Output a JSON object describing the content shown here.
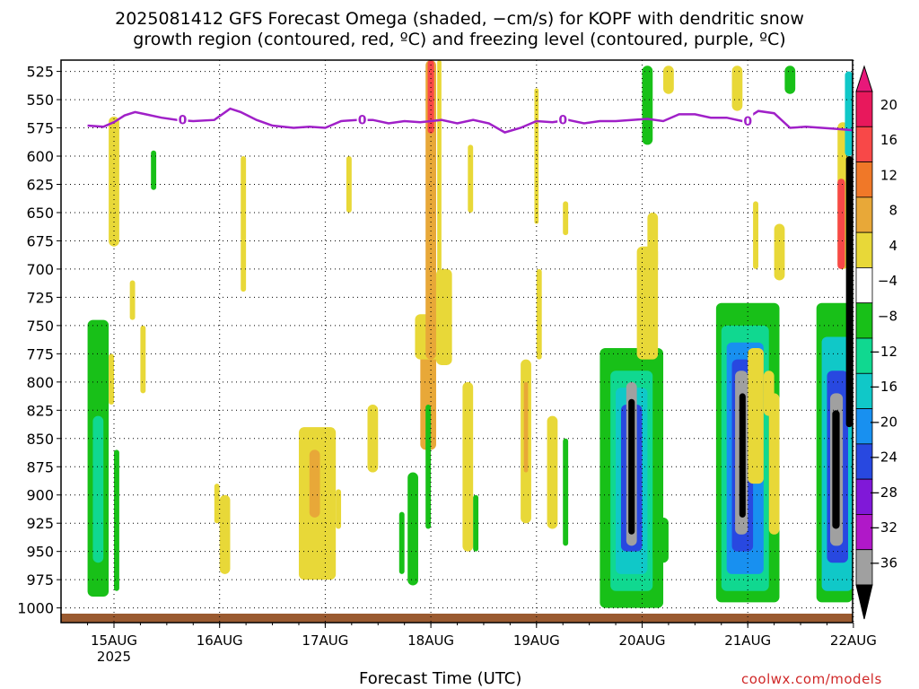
{
  "title": "2025081412 GFS Forecast Omega (shaded, −cm/s) for KOPF with dendritic snow\ngrowth region (contoured, red, ºC) and freezing level (contoured, purple, ºC)",
  "credit": "coolwx.com/models",
  "chart_data": {
    "type": "heatmap",
    "xlabel": "Forecast Time (UTC)",
    "x_ticks": [
      "15AUG",
      "16AUG",
      "17AUG",
      "18AUG",
      "19AUG",
      "20AUG",
      "21AUG",
      "22AUG"
    ],
    "x_year": "2025",
    "x_range_days": [
      -0.25,
      7.0
    ],
    "y_ticks": [
      525,
      550,
      575,
      600,
      625,
      650,
      675,
      700,
      725,
      750,
      775,
      800,
      825,
      850,
      875,
      900,
      925,
      950,
      975,
      1000
    ],
    "y_range_hpa": [
      1013,
      515
    ],
    "grid": "dotted",
    "colorbar": {
      "labels": [
        "20",
        "16",
        "12",
        "8",
        "4",
        "−4",
        "−8",
        "−12",
        "−16",
        "−20",
        "−24",
        "−28",
        "−32",
        "−36"
      ],
      "colors": [
        "#e8185c",
        "#f84848",
        "#f07828",
        "#e8a838",
        "#e8d838",
        "#ffffff",
        "#18c018",
        "#10d890",
        "#10c8c8",
        "#1890f0",
        "#2848e0",
        "#8018d8",
        "#b018c8",
        "#a0a0a0"
      ],
      "extend_max_color": "#e8187a",
      "extend_min_color": "#000000"
    },
    "freezing_level": {
      "color": "#a020c8",
      "label": "0",
      "label_days": [
        0.65,
        2.35,
        4.25,
        6.0
      ],
      "days": [
        -0.25,
        -0.1,
        0.0,
        0.1,
        0.2,
        0.3,
        0.45,
        0.6,
        0.75,
        0.95,
        1.1,
        1.2,
        1.35,
        1.5,
        1.7,
        1.85,
        2.0,
        2.15,
        2.3,
        2.45,
        2.6,
        2.75,
        2.9,
        3.0,
        3.1,
        3.25,
        3.4,
        3.55,
        3.7,
        3.85,
        4.0,
        4.15,
        4.3,
        4.45,
        4.6,
        4.75,
        4.9,
        5.05,
        5.2,
        5.35,
        5.5,
        5.65,
        5.8,
        5.95,
        6.1,
        6.25,
        6.4,
        6.55,
        6.7,
        6.85,
        7.0
      ],
      "hpa": [
        573,
        574,
        570,
        564,
        561,
        563,
        566,
        568,
        569,
        568,
        558,
        561,
        568,
        573,
        575,
        574,
        575,
        569,
        568,
        568,
        571,
        569,
        570,
        569,
        568,
        571,
        568,
        571,
        579,
        575,
        569,
        570,
        568,
        571,
        569,
        569,
        568,
        567,
        569,
        563,
        563,
        566,
        566,
        569,
        560,
        562,
        575,
        574,
        575,
        576,
        577
      ]
    },
    "omega_cells": [
      {
        "x0": -0.25,
        "x1": -0.05,
        "p0": 745,
        "p1": 990,
        "v": -5
      },
      {
        "x0": -0.2,
        "x1": -0.1,
        "p0": 830,
        "p1": 960,
        "v": -9
      },
      {
        "x0": -0.05,
        "x1": 0.0,
        "p0": 775,
        "p1": 820,
        "v": 5
      },
      {
        "x0": 0.0,
        "x1": 0.05,
        "p0": 860,
        "p1": 985,
        "v": -5
      },
      {
        "x0": -0.05,
        "x1": 0.05,
        "p0": 565,
        "p1": 680,
        "v": 5
      },
      {
        "x0": 0.15,
        "x1": 0.2,
        "p0": 710,
        "p1": 745,
        "v": 5
      },
      {
        "x0": 0.25,
        "x1": 0.3,
        "p0": 750,
        "p1": 810,
        "v": 5
      },
      {
        "x0": 0.35,
        "x1": 0.4,
        "p0": 595,
        "p1": 630,
        "v": -5
      },
      {
        "x0": 0.95,
        "x1": 1.0,
        "p0": 890,
        "p1": 925,
        "v": 5
      },
      {
        "x0": 1.0,
        "x1": 1.1,
        "p0": 900,
        "p1": 970,
        "v": 5
      },
      {
        "x0": 1.2,
        "x1": 1.25,
        "p0": 600,
        "p1": 720,
        "v": 5
      },
      {
        "x0": 1.75,
        "x1": 2.1,
        "p0": 840,
        "p1": 975,
        "v": 5
      },
      {
        "x0": 1.85,
        "x1": 1.95,
        "p0": 860,
        "p1": 920,
        "v": 9
      },
      {
        "x0": 2.1,
        "x1": 2.15,
        "p0": 895,
        "p1": 930,
        "v": 5
      },
      {
        "x0": 2.2,
        "x1": 2.25,
        "p0": 600,
        "p1": 650,
        "v": 5
      },
      {
        "x0": 2.9,
        "x1": 3.05,
        "p0": 760,
        "p1": 860,
        "v": 9
      },
      {
        "x0": 2.85,
        "x1": 3.1,
        "p0": 740,
        "p1": 780,
        "v": 5
      },
      {
        "x0": 3.05,
        "x1": 3.2,
        "p0": 700,
        "p1": 785,
        "v": 5
      },
      {
        "x0": 2.95,
        "x1": 3.05,
        "p0": 515,
        "p1": 780,
        "v": 9
      },
      {
        "x0": 2.97,
        "x1": 3.03,
        "p0": 515,
        "p1": 580,
        "v": 18
      },
      {
        "x0": 3.06,
        "x1": 3.1,
        "p0": 515,
        "p1": 740,
        "v": 5
      },
      {
        "x0": 2.4,
        "x1": 2.5,
        "p0": 820,
        "p1": 880,
        "v": 5
      },
      {
        "x0": 2.7,
        "x1": 2.75,
        "p0": 915,
        "p1": 970,
        "v": -5
      },
      {
        "x0": 2.78,
        "x1": 2.88,
        "p0": 880,
        "p1": 980,
        "v": -5
      },
      {
        "x0": 2.95,
        "x1": 3.0,
        "p0": 820,
        "p1": 930,
        "v": -5
      },
      {
        "x0": 3.3,
        "x1": 3.4,
        "p0": 800,
        "p1": 950,
        "v": 5
      },
      {
        "x0": 3.35,
        "x1": 3.4,
        "p0": 590,
        "p1": 650,
        "v": 5
      },
      {
        "x0": 3.4,
        "x1": 3.45,
        "p0": 900,
        "p1": 950,
        "v": -5
      },
      {
        "x0": 3.85,
        "x1": 3.95,
        "p0": 780,
        "p1": 925,
        "v": 5
      },
      {
        "x0": 3.88,
        "x1": 3.92,
        "p0": 800,
        "p1": 880,
        "v": 9
      },
      {
        "x0": 3.98,
        "x1": 4.02,
        "p0": 540,
        "p1": 660,
        "v": 5
      },
      {
        "x0": 4.0,
        "x1": 4.05,
        "p0": 700,
        "p1": 780,
        "v": 5
      },
      {
        "x0": 4.1,
        "x1": 4.2,
        "p0": 830,
        "p1": 930,
        "v": 5
      },
      {
        "x0": 4.25,
        "x1": 4.3,
        "p0": 640,
        "p1": 670,
        "v": 5
      },
      {
        "x0": 4.25,
        "x1": 4.3,
        "p0": 850,
        "p1": 945,
        "v": -5
      },
      {
        "x0": 4.6,
        "x1": 5.2,
        "p0": 770,
        "p1": 1000,
        "v": -6
      },
      {
        "x0": 4.7,
        "x1": 5.1,
        "p0": 790,
        "p1": 985,
        "v": -10
      },
      {
        "x0": 4.75,
        "x1": 5.05,
        "p0": 805,
        "p1": 970,
        "v": -15
      },
      {
        "x0": 4.8,
        "x1": 5.0,
        "p0": 820,
        "p1": 950,
        "v": -22
      },
      {
        "x0": 4.85,
        "x1": 4.95,
        "p0": 800,
        "p1": 945,
        "v": -34
      },
      {
        "x0": 4.87,
        "x1": 4.93,
        "p0": 815,
        "p1": 935,
        "v": -40
      },
      {
        "x0": 5.1,
        "x1": 5.25,
        "p0": 920,
        "p1": 960,
        "v": -5
      },
      {
        "x0": 4.95,
        "x1": 5.15,
        "p0": 680,
        "p1": 780,
        "v": 5
      },
      {
        "x0": 5.05,
        "x1": 5.15,
        "p0": 650,
        "p1": 700,
        "v": 5
      },
      {
        "x0": 5.0,
        "x1": 5.1,
        "p0": 520,
        "p1": 590,
        "v": -5
      },
      {
        "x0": 5.2,
        "x1": 5.3,
        "p0": 520,
        "p1": 545,
        "v": 5
      },
      {
        "x0": 5.7,
        "x1": 6.3,
        "p0": 730,
        "p1": 995,
        "v": -6
      },
      {
        "x0": 5.75,
        "x1": 6.2,
        "p0": 750,
        "p1": 985,
        "v": -10
      },
      {
        "x0": 5.8,
        "x1": 6.15,
        "p0": 765,
        "p1": 970,
        "v": -16
      },
      {
        "x0": 5.85,
        "x1": 6.05,
        "p0": 780,
        "p1": 950,
        "v": -22
      },
      {
        "x0": 5.88,
        "x1": 6.0,
        "p0": 790,
        "p1": 935,
        "v": -34
      },
      {
        "x0": 5.92,
        "x1": 5.98,
        "p0": 810,
        "p1": 920,
        "v": -40
      },
      {
        "x0": 6.0,
        "x1": 6.15,
        "p0": 770,
        "p1": 890,
        "v": 5
      },
      {
        "x0": 6.05,
        "x1": 6.1,
        "p0": 640,
        "p1": 700,
        "v": 5
      },
      {
        "x0": 6.15,
        "x1": 6.25,
        "p0": 790,
        "p1": 830,
        "v": 5
      },
      {
        "x0": 6.2,
        "x1": 6.3,
        "p0": 810,
        "p1": 935,
        "v": 5
      },
      {
        "x0": 6.25,
        "x1": 6.35,
        "p0": 660,
        "p1": 710,
        "v": 5
      },
      {
        "x0": 5.85,
        "x1": 5.95,
        "p0": 520,
        "p1": 560,
        "v": 5
      },
      {
        "x0": 6.35,
        "x1": 6.45,
        "p0": 520,
        "p1": 545,
        "v": -5
      },
      {
        "x0": 6.65,
        "x1": 7.0,
        "p0": 730,
        "p1": 995,
        "v": -6
      },
      {
        "x0": 6.7,
        "x1": 7.0,
        "p0": 760,
        "p1": 985,
        "v": -12
      },
      {
        "x0": 6.75,
        "x1": 6.95,
        "p0": 790,
        "p1": 960,
        "v": -20
      },
      {
        "x0": 6.78,
        "x1": 6.9,
        "p0": 810,
        "p1": 945,
        "v": -34
      },
      {
        "x0": 6.8,
        "x1": 6.87,
        "p0": 825,
        "p1": 930,
        "v": -40
      },
      {
        "x0": 6.85,
        "x1": 6.95,
        "p0": 570,
        "p1": 700,
        "v": 6
      },
      {
        "x0": 6.85,
        "x1": 6.92,
        "p0": 620,
        "p1": 700,
        "v": 18
      },
      {
        "x0": 6.92,
        "x1": 7.0,
        "p0": 525,
        "p1": 600,
        "v": -14
      },
      {
        "x0": 6.93,
        "x1": 7.0,
        "p0": 600,
        "p1": 840,
        "v": -40
      }
    ]
  }
}
